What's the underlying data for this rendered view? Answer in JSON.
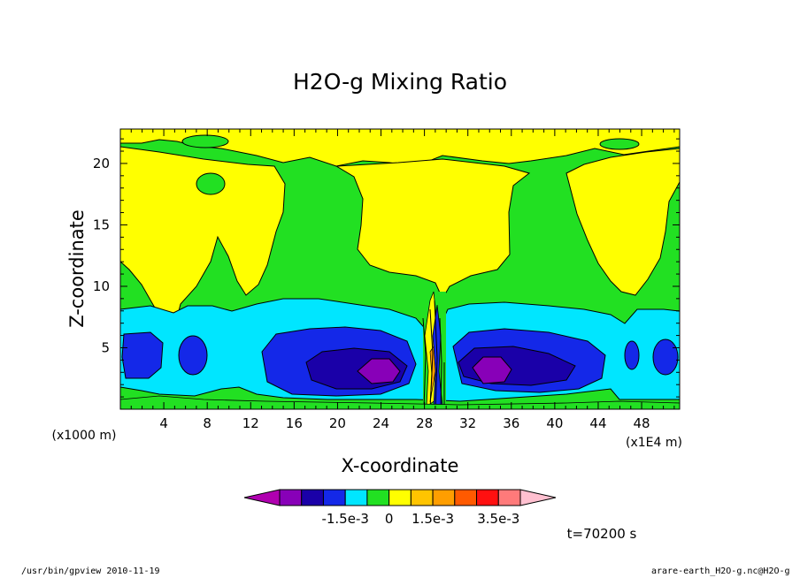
{
  "chart_data": {
    "type": "heatmap",
    "subtype": "filled-contour",
    "title": "H2O-g Mixing Ratio",
    "xlabel": "X-coordinate",
    "ylabel": "Z-coordinate",
    "x_units_left": "(x1000 m)",
    "x_units_right": "(x1E4 m)",
    "x_ticks": [
      "4",
      "8",
      "12",
      "16",
      "20",
      "24",
      "28",
      "32",
      "36",
      "40",
      "44",
      "48"
    ],
    "x_tick_values": [
      4,
      8,
      12,
      16,
      20,
      24,
      28,
      32,
      36,
      40,
      44,
      48
    ],
    "y_ticks": [
      "5",
      "10",
      "15",
      "20"
    ],
    "y_tick_values": [
      5,
      10,
      15,
      20
    ],
    "xlim": [
      0,
      51.5
    ],
    "ylim": [
      0,
      22.8
    ],
    "colorbar": {
      "labels": [
        "-1.5e-3",
        "0",
        "1.5e-3",
        "3.5e-3"
      ],
      "label_values": [
        -0.0015,
        0,
        0.0015,
        0.0035
      ],
      "colors": [
        "#b000b0",
        "#8800b8",
        "#1a00a8",
        "#1428e8",
        "#00e6ff",
        "#22e022",
        "#ffff00",
        "#ffc400",
        "#ff9e00",
        "#ff5a00",
        "#ff1010",
        "#ff7a7a",
        "#ffc0d0"
      ]
    },
    "time_label": "t=70200 s"
  },
  "footer": {
    "left": "/usr/bin/gpview  2010-11-19",
    "right": "arare-earth_H2O-g.nc@H2O-g"
  },
  "colors": {
    "green": "#22e022",
    "yellow": "#ffff00",
    "cyan": "#00e6ff",
    "blue": "#1428e8",
    "darkblue": "#1a00a8",
    "purple": "#8800b8"
  }
}
